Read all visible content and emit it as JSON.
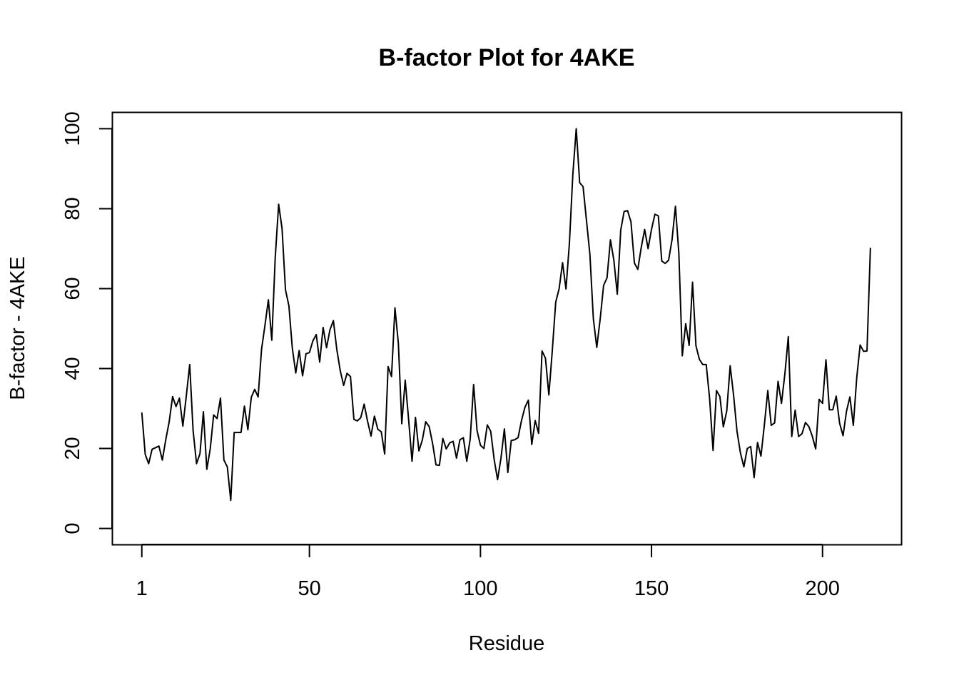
{
  "chart_data": {
    "type": "line",
    "title": "B-factor Plot for 4AKE",
    "xlabel": "Residue",
    "ylabel": "B-factor - 4AKE",
    "xlim": [
      -7.5,
      223
    ],
    "ylim": [
      -4,
      104
    ],
    "x_ticks": [
      1,
      50,
      100,
      150,
      200
    ],
    "y_ticks": [
      0,
      20,
      40,
      60,
      80,
      100
    ],
    "grid": false,
    "legend": "none",
    "line_color": "#000000",
    "x_start": 1,
    "series": [
      {
        "values": [
          29.0,
          18.5,
          16.2,
          19.8,
          20.2,
          20.6,
          17.1,
          22.2,
          26.7,
          33.0,
          30.5,
          32.6,
          25.6,
          33.1,
          41.0,
          24.4,
          16.2,
          18.7,
          29.2,
          14.8,
          19.9,
          28.4,
          27.5,
          32.6,
          17.1,
          15.4,
          7.0,
          24.0,
          24.0,
          24.0,
          30.6,
          24.7,
          32.8,
          34.8,
          32.9,
          44.8,
          50.8,
          57.2,
          47.1,
          67.7,
          81.1,
          75.0,
          59.7,
          55.7,
          45.1,
          38.9,
          44.5,
          38.2,
          43.7,
          44.0,
          46.9,
          48.5,
          41.6,
          50.3,
          45.2,
          49.7,
          52.0,
          44.8,
          39.5,
          35.8,
          38.8,
          38.0,
          27.3,
          26.9,
          27.7,
          31.1,
          26.8,
          23.1,
          28.1,
          24.8,
          24.2,
          18.6,
          40.5,
          38.0,
          55.2,
          46.3,
          26.2,
          37.1,
          27.2,
          16.8,
          27.8,
          19.4,
          22.1,
          26.7,
          25.5,
          21.3,
          15.9,
          15.8,
          22.5,
          19.9,
          21.4,
          21.8,
          17.6,
          22.2,
          22.7,
          16.8,
          22.4,
          36.0,
          24.5,
          20.8,
          20.0,
          25.9,
          24.3,
          17.3,
          12.2,
          17.6,
          24.9,
          14.0,
          22.0,
          22.2,
          22.7,
          27.0,
          30.3,
          32.1,
          21.0,
          27.0,
          23.8,
          44.4,
          42.6,
          33.4,
          44.5,
          56.6,
          60.0,
          66.5,
          59.9,
          71.3,
          88.5,
          100.0,
          86.5,
          85.5,
          77.0,
          68.5,
          52.5,
          45.3,
          52.4,
          60.8,
          62.7,
          72.2,
          67.1,
          58.6,
          74.6,
          79.3,
          79.5,
          76.7,
          66.4,
          64.8,
          70.3,
          74.8,
          70.0,
          74.8,
          78.6,
          78.2,
          66.9,
          66.3,
          67.1,
          72.2,
          80.6,
          68.8,
          43.2,
          51.2,
          45.8,
          61.6,
          45.7,
          42.3,
          41.0,
          41.0,
          32.4,
          19.5,
          34.5,
          33.0,
          25.4,
          29.4,
          40.7,
          33.3,
          24.3,
          18.9,
          15.4,
          20.0,
          20.5,
          12.7,
          21.5,
          18.1,
          25.9,
          34.5,
          25.8,
          26.4,
          36.8,
          31.3,
          38.7,
          48.0,
          23.0,
          29.6,
          23.0,
          23.7,
          26.5,
          25.5,
          23.1,
          19.9,
          32.3,
          31.3,
          42.2,
          29.7,
          29.7,
          33.1,
          26.3,
          23.2,
          29.3,
          32.9,
          25.8,
          37.7,
          45.9,
          44.3,
          44.4,
          70.2
        ]
      }
    ]
  }
}
